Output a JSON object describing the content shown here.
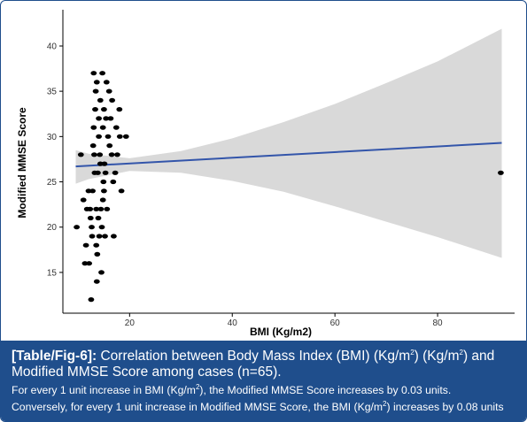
{
  "chart_data": {
    "type": "scatter",
    "xlabel": "BMI (Kg/m2)",
    "ylabel": "Modified MMSE Score",
    "xlim": [
      7,
      95
    ],
    "ylim": [
      10.5,
      44
    ],
    "xticks": [
      20,
      40,
      60,
      80
    ],
    "yticks": [
      15,
      20,
      25,
      30,
      35,
      40
    ],
    "grid": false,
    "points": [
      [
        9.7,
        20
      ],
      [
        10.5,
        28
      ],
      [
        11.0,
        23
      ],
      [
        11.3,
        16
      ],
      [
        11.5,
        18
      ],
      [
        11.7,
        22
      ],
      [
        12.0,
        24
      ],
      [
        12.1,
        16
      ],
      [
        12.3,
        22
      ],
      [
        12.5,
        12
      ],
      [
        12.6,
        20
      ],
      [
        12.7,
        19
      ],
      [
        12.8,
        24
      ],
      [
        12.9,
        29
      ],
      [
        13.0,
        31
      ],
      [
        13.0,
        37
      ],
      [
        13.1,
        28
      ],
      [
        13.2,
        26
      ],
      [
        13.3,
        33
      ],
      [
        13.4,
        35
      ],
      [
        13.5,
        22
      ],
      [
        13.6,
        14
      ],
      [
        13.6,
        36
      ],
      [
        13.7,
        17
      ],
      [
        13.8,
        26
      ],
      [
        13.9,
        21
      ],
      [
        14.0,
        30
      ],
      [
        14.0,
        32
      ],
      [
        14.1,
        19
      ],
      [
        14.2,
        28
      ],
      [
        14.3,
        27
      ],
      [
        14.3,
        34
      ],
      [
        14.4,
        22
      ],
      [
        14.5,
        15
      ],
      [
        14.6,
        20
      ],
      [
        14.7,
        37
      ],
      [
        14.8,
        31
      ],
      [
        14.9,
        25
      ],
      [
        15.0,
        33
      ],
      [
        15.0,
        24
      ],
      [
        15.1,
        27
      ],
      [
        15.2,
        19
      ],
      [
        15.3,
        26
      ],
      [
        15.4,
        32
      ],
      [
        15.6,
        22
      ],
      [
        15.8,
        30
      ],
      [
        16.0,
        35
      ],
      [
        16.1,
        29
      ],
      [
        16.3,
        32
      ],
      [
        16.5,
        28
      ],
      [
        16.6,
        34
      ],
      [
        16.9,
        19
      ],
      [
        17.2,
        26
      ],
      [
        17.4,
        31
      ],
      [
        17.6,
        28
      ],
      [
        18.0,
        33
      ],
      [
        18.1,
        30
      ],
      [
        18.4,
        24
      ],
      [
        19.3,
        30
      ],
      [
        13.5,
        18
      ],
      [
        14.8,
        23
      ],
      [
        12.4,
        21
      ],
      [
        15.5,
        36
      ],
      [
        16.8,
        25
      ],
      [
        92.3,
        26
      ]
    ],
    "trend": {
      "x": [
        9.5,
        92.5
      ],
      "y": [
        26.7,
        29.3
      ]
    },
    "band": {
      "x": [
        9.5,
        12,
        20,
        30,
        40,
        50,
        60,
        70,
        80,
        92.5
      ],
      "upper": [
        28.5,
        28.1,
        27.6,
        28.4,
        29.8,
        31.6,
        33.6,
        35.9,
        38.3,
        41.9
      ],
      "lower": [
        24.8,
        25.3,
        26.2,
        26.0,
        25.1,
        23.9,
        22.3,
        20.6,
        18.9,
        16.6
      ]
    },
    "colors": {
      "points": "#000000",
      "trend": "#3355aa",
      "band": "#d9d9d9"
    }
  },
  "caption": {
    "tag": "[Table/Fig-6]:",
    "title_a": " Correlation between Body Mass Index (BMI) (Kg/m",
    "title_sup": "2",
    "title_b": ") (Kg/m",
    "title_sup2": "2",
    "title_c": ") and Modified MMSE Score among cases (n=65).",
    "note1_a": "For every 1 unit increase in BMI (Kg/m",
    "note1_sup": "2",
    "note1_b": "), the Modified MMSE Score increases by 0.03 units.",
    "note2_a": "Conversely, for every 1 unit increase in Modified MMSE Score, the BMI (Kg/m",
    "note2_sup": "2",
    "note2_b": ") increases by 0.08 units"
  }
}
